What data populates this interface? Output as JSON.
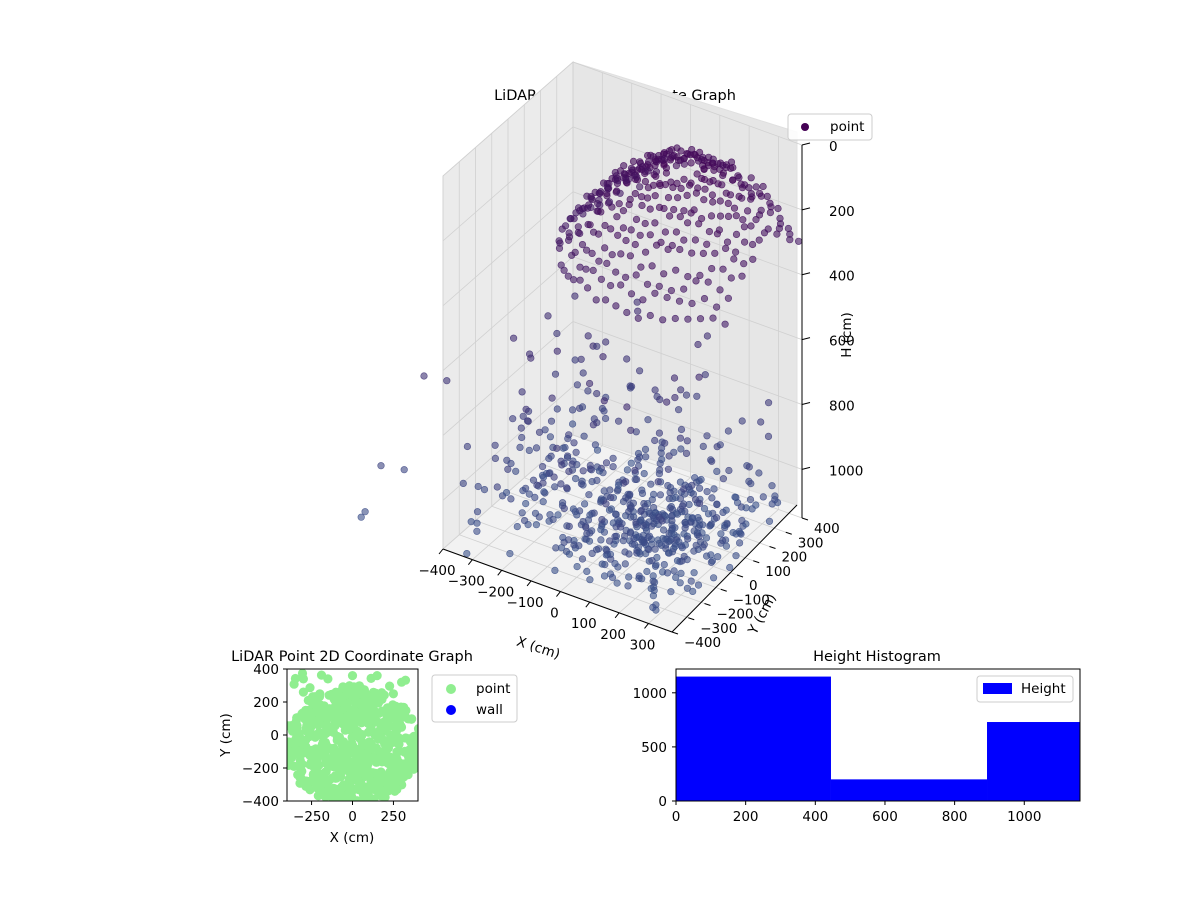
{
  "colors": {
    "scatter3d_top": "#440154",
    "scatter3d_bottom": "#3b528b",
    "scatter3d_alpha": 0.6,
    "point2d": "#90ee90",
    "wall2d": "#0000ff",
    "hist_fill": "#0000ff",
    "pane": "#f2f2f2",
    "grid": "#d0d0d0"
  },
  "chart_data": [
    {
      "type": "scatter",
      "title": "LiDAR Point 3D Coordinate Graph",
      "xlabel": "X (cm)",
      "ylabel": "Y (cm)",
      "zlabel": "H (cm)",
      "x_ticks": [
        "−400",
        "−300",
        "−200",
        "−100",
        "0",
        "100",
        "200",
        "300"
      ],
      "x_tick_values": [
        -400,
        -300,
        -200,
        -100,
        0,
        100,
        200,
        300
      ],
      "y_ticks": [
        "−400",
        "−300",
        "−200",
        "−100",
        "0",
        "100",
        "200",
        "300",
        "400"
      ],
      "y_tick_values": [
        -400,
        -300,
        -200,
        -100,
        0,
        100,
        200,
        300,
        400
      ],
      "z_ticks": [
        "0",
        "200",
        "400",
        "600",
        "800",
        "1000"
      ],
      "z_tick_values": [
        0,
        200,
        400,
        600,
        800,
        1000
      ],
      "xlim": [
        -400,
        380
      ],
      "ylim": [
        -400,
        400
      ],
      "zlim": [
        1150,
        0
      ],
      "z_inverted": true,
      "grid": true,
      "legend": {
        "position": "top-right",
        "entries": [
          "point"
        ]
      },
      "series": [
        {
          "name": "point",
          "description": "dome of points near the ceiling (H≈20–250) plus a radial pattern of points near the floor (H≈800–1150)"
        }
      ]
    },
    {
      "type": "scatter",
      "title": "LiDAR Point 2D Coordinate Graph",
      "xlabel": "X (cm)",
      "ylabel": "Y (cm)",
      "x_ticks": [
        "−250",
        "0",
        "250"
      ],
      "x_tick_values": [
        -250,
        0,
        250
      ],
      "y_ticks": [
        "−400",
        "−200",
        "0",
        "200",
        "400"
      ],
      "y_tick_values": [
        -400,
        -200,
        0,
        200,
        400
      ],
      "xlim": [
        -400,
        400
      ],
      "ylim": [
        -400,
        400
      ],
      "legend": {
        "position": "outside-right",
        "entries": [
          "point",
          "wall"
        ]
      },
      "series": [
        {
          "name": "point",
          "description": "dense filled disc of points covering most of the plot area"
        },
        {
          "name": "wall",
          "points": []
        }
      ]
    },
    {
      "type": "bar",
      "title": "Height Histogram",
      "xlabel": "",
      "ylabel": "",
      "x_ticks": [
        "0",
        "200",
        "400",
        "600",
        "800",
        "1000"
      ],
      "x_tick_values": [
        0,
        200,
        400,
        600,
        800,
        1000
      ],
      "y_ticks": [
        "0",
        "500",
        "1000"
      ],
      "y_tick_values": [
        0,
        500,
        1000
      ],
      "xlim": [
        0,
        1160
      ],
      "ylim": [
        0,
        1220
      ],
      "bins": [
        {
          "from": 0,
          "to": 445,
          "count": 1150
        },
        {
          "from": 445,
          "to": 893,
          "count": 200
        },
        {
          "from": 893,
          "to": 1160,
          "count": 730
        }
      ],
      "legend": {
        "position": "top-right",
        "entries": [
          "Height"
        ]
      },
      "series": [
        {
          "name": "Height"
        }
      ]
    }
  ]
}
